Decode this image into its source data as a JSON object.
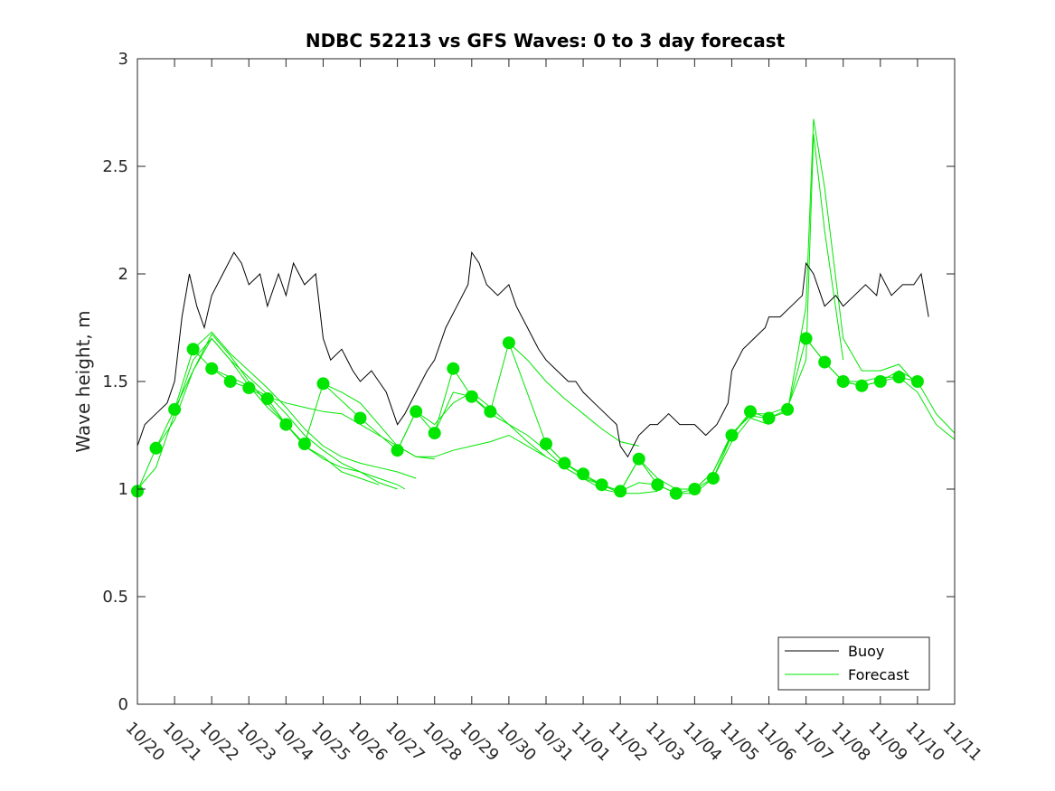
{
  "chart_data": {
    "type": "line",
    "title": "NDBC 52213 vs GFS Waves: 0 to 3 day forecast",
    "xlabel": "",
    "ylabel": "Wave height, m",
    "ylim": [
      0,
      3
    ],
    "xlim": [
      0,
      22
    ],
    "yticks": [
      0,
      0.5,
      1,
      1.5,
      2,
      2.5,
      3
    ],
    "ytick_labels": [
      "0",
      "0.5",
      "1",
      "1.5",
      "2",
      "2.5",
      "3"
    ],
    "xticks": [
      0,
      1,
      2,
      3,
      4,
      5,
      6,
      7,
      8,
      9,
      10,
      11,
      12,
      13,
      14,
      15,
      16,
      17,
      18,
      19,
      20,
      21,
      22
    ],
    "xtick_labels": [
      "10/20",
      "10/21",
      "10/22",
      "10/23",
      "10/24",
      "10/25",
      "10/26",
      "10/27",
      "10/28",
      "10/29",
      "10/30",
      "10/31",
      "11/01",
      "11/02",
      "11/03",
      "11/04",
      "11/05",
      "11/06",
      "11/07",
      "11/08",
      "11/09",
      "11/10",
      "11/11"
    ],
    "x_units": "days since 10/20",
    "grid": false,
    "legend": {
      "position": "bottom-right",
      "entries": [
        {
          "label": "Buoy",
          "color": "#000000"
        },
        {
          "label": "Forecast",
          "color": "#00e600"
        }
      ]
    },
    "series": [
      {
        "name": "Buoy",
        "color": "#000000",
        "points": [
          [
            0,
            1.2
          ],
          [
            0.2,
            1.3
          ],
          [
            0.5,
            1.35
          ],
          [
            0.8,
            1.4
          ],
          [
            1.0,
            1.5
          ],
          [
            1.2,
            1.8
          ],
          [
            1.4,
            2.0
          ],
          [
            1.6,
            1.85
          ],
          [
            1.8,
            1.75
          ],
          [
            2.0,
            1.9
          ],
          [
            2.3,
            2.0
          ],
          [
            2.6,
            2.1
          ],
          [
            2.8,
            2.05
          ],
          [
            3.0,
            1.95
          ],
          [
            3.3,
            2.0
          ],
          [
            3.5,
            1.85
          ],
          [
            3.8,
            2.0
          ],
          [
            4.0,
            1.9
          ],
          [
            4.2,
            2.05
          ],
          [
            4.5,
            1.95
          ],
          [
            4.8,
            2.0
          ],
          [
            5.0,
            1.7
          ],
          [
            5.2,
            1.6
          ],
          [
            5.5,
            1.65
          ],
          [
            5.8,
            1.55
          ],
          [
            6.0,
            1.5
          ],
          [
            6.3,
            1.55
          ],
          [
            6.5,
            1.5
          ],
          [
            6.7,
            1.45
          ],
          [
            6.9,
            1.35
          ],
          [
            7.0,
            1.3
          ],
          [
            7.2,
            1.35
          ],
          [
            7.5,
            1.45
          ],
          [
            7.8,
            1.55
          ],
          [
            8.0,
            1.6
          ],
          [
            8.3,
            1.75
          ],
          [
            8.6,
            1.85
          ],
          [
            8.9,
            1.95
          ],
          [
            9.0,
            2.1
          ],
          [
            9.2,
            2.05
          ],
          [
            9.4,
            1.95
          ],
          [
            9.7,
            1.9
          ],
          [
            10.0,
            1.95
          ],
          [
            10.2,
            1.85
          ],
          [
            10.5,
            1.75
          ],
          [
            10.8,
            1.65
          ],
          [
            11.0,
            1.6
          ],
          [
            11.3,
            1.55
          ],
          [
            11.6,
            1.5
          ],
          [
            11.8,
            1.5
          ],
          [
            12.0,
            1.45
          ],
          [
            12.3,
            1.4
          ],
          [
            12.6,
            1.35
          ],
          [
            12.9,
            1.3
          ],
          [
            13.0,
            1.2
          ],
          [
            13.2,
            1.15
          ],
          [
            13.5,
            1.25
          ],
          [
            13.8,
            1.3
          ],
          [
            14.0,
            1.3
          ],
          [
            14.3,
            1.35
          ],
          [
            14.6,
            1.3
          ],
          [
            14.9,
            1.3
          ],
          [
            15.0,
            1.3
          ],
          [
            15.3,
            1.25
          ],
          [
            15.6,
            1.3
          ],
          [
            15.9,
            1.4
          ],
          [
            16.0,
            1.55
          ],
          [
            16.3,
            1.65
          ],
          [
            16.6,
            1.7
          ],
          [
            16.9,
            1.75
          ],
          [
            17.0,
            1.8
          ],
          [
            17.3,
            1.8
          ],
          [
            17.6,
            1.85
          ],
          [
            17.9,
            1.9
          ],
          [
            18.0,
            2.05
          ],
          [
            18.2,
            2.0
          ],
          [
            18.5,
            1.85
          ],
          [
            18.8,
            1.9
          ],
          [
            19.0,
            1.85
          ],
          [
            19.3,
            1.9
          ],
          [
            19.6,
            1.95
          ],
          [
            19.9,
            1.9
          ],
          [
            20.0,
            2.0
          ],
          [
            20.3,
            1.9
          ],
          [
            20.6,
            1.95
          ],
          [
            20.9,
            1.95
          ],
          [
            21.1,
            2.0
          ],
          [
            21.3,
            1.8
          ]
        ]
      },
      {
        "name": "Forecast",
        "color": "#00e600",
        "points": [
          [
            0.0,
            0.99
          ],
          [
            0.5,
            1.19
          ],
          [
            1.0,
            1.37
          ],
          [
            1.5,
            1.65
          ],
          [
            2.0,
            1.56
          ],
          [
            2.5,
            1.5
          ],
          [
            3.0,
            1.47
          ],
          [
            3.5,
            1.42
          ],
          [
            4.0,
            1.3
          ],
          [
            4.5,
            1.21
          ],
          [
            5.0,
            1.49
          ],
          [
            6.0,
            1.33
          ],
          [
            7.0,
            1.18
          ],
          [
            7.5,
            1.36
          ],
          [
            8.0,
            1.26
          ],
          [
            8.5,
            1.56
          ],
          [
            9.0,
            1.43
          ],
          [
            9.5,
            1.36
          ],
          [
            10.0,
            1.68
          ],
          [
            11.0,
            1.21
          ],
          [
            11.5,
            1.12
          ],
          [
            12.0,
            1.07
          ],
          [
            12.5,
            1.02
          ],
          [
            13.0,
            0.99
          ],
          [
            13.5,
            1.14
          ],
          [
            14.0,
            1.02
          ],
          [
            14.5,
            0.98
          ],
          [
            15.0,
            1.0
          ],
          [
            15.5,
            1.05
          ],
          [
            16.0,
            1.25
          ],
          [
            16.5,
            1.36
          ],
          [
            17.0,
            1.33
          ],
          [
            17.5,
            1.37
          ],
          [
            18.0,
            1.7
          ],
          [
            18.5,
            1.59
          ],
          [
            19.0,
            1.5
          ],
          [
            19.5,
            1.48
          ],
          [
            20.0,
            1.5
          ],
          [
            20.5,
            1.52
          ],
          [
            21.0,
            1.5
          ]
        ]
      }
    ],
    "forecast_runs": [
      [
        [
          0.0,
          1.0
        ],
        [
          0.5,
          1.1
        ],
        [
          1.0,
          1.35
        ],
        [
          1.5,
          1.6
        ],
        [
          2.0,
          1.7
        ],
        [
          2.5,
          1.6
        ],
        [
          3.0,
          1.48
        ],
        [
          3.5,
          1.38
        ],
        [
          4.0,
          1.3
        ],
        [
          4.5,
          1.2
        ],
        [
          5.0,
          1.15
        ],
        [
          5.5,
          1.08
        ],
        [
          6.0,
          1.05
        ],
        [
          6.5,
          1.02
        ]
      ],
      [
        [
          0.5,
          1.19
        ],
        [
          1.0,
          1.32
        ],
        [
          1.5,
          1.55
        ],
        [
          2.0,
          1.72
        ],
        [
          2.5,
          1.62
        ],
        [
          3.0,
          1.5
        ],
        [
          3.5,
          1.4
        ],
        [
          4.0,
          1.3
        ],
        [
          4.5,
          1.2
        ],
        [
          5.0,
          1.14
        ],
        [
          5.5,
          1.1
        ],
        [
          6.0,
          1.08
        ],
        [
          6.5,
          1.03
        ],
        [
          7.0,
          1.0
        ]
      ],
      [
        [
          1.0,
          1.37
        ],
        [
          1.5,
          1.55
        ],
        [
          2.0,
          1.7
        ],
        [
          2.5,
          1.6
        ],
        [
          3.0,
          1.52
        ],
        [
          3.5,
          1.44
        ],
        [
          4.0,
          1.35
        ],
        [
          4.5,
          1.25
        ],
        [
          5.0,
          1.18
        ],
        [
          5.5,
          1.12
        ],
        [
          6.0,
          1.08
        ],
        [
          6.5,
          1.05
        ],
        [
          7.0,
          1.02
        ],
        [
          7.2,
          1.0
        ]
      ],
      [
        [
          1.5,
          1.65
        ],
        [
          2.0,
          1.73
        ],
        [
          2.5,
          1.63
        ],
        [
          3.0,
          1.55
        ],
        [
          3.5,
          1.47
        ],
        [
          4.0,
          1.38
        ],
        [
          4.5,
          1.28
        ],
        [
          5.0,
          1.2
        ],
        [
          5.5,
          1.15
        ],
        [
          6.0,
          1.12
        ],
        [
          6.5,
          1.1
        ],
        [
          7.0,
          1.08
        ],
        [
          7.5,
          1.05
        ]
      ],
      [
        [
          2.0,
          1.56
        ],
        [
          2.5,
          1.52
        ],
        [
          3.0,
          1.48
        ],
        [
          3.5,
          1.43
        ],
        [
          4.0,
          1.4
        ],
        [
          4.5,
          1.38
        ],
        [
          5.0,
          1.36
        ],
        [
          5.5,
          1.35
        ],
        [
          6.0,
          1.3
        ],
        [
          6.5,
          1.25
        ],
        [
          7.0,
          1.2
        ],
        [
          7.5,
          1.15
        ],
        [
          8.0,
          1.14
        ]
      ],
      [
        [
          5.0,
          1.49
        ],
        [
          5.5,
          1.45
        ],
        [
          6.0,
          1.4
        ],
        [
          6.5,
          1.3
        ],
        [
          7.0,
          1.2
        ],
        [
          7.5,
          1.15
        ],
        [
          8.0,
          1.15
        ],
        [
          8.5,
          1.18
        ],
        [
          9.0,
          1.2
        ],
        [
          9.5,
          1.22
        ],
        [
          10.0,
          1.25
        ],
        [
          10.5,
          1.2
        ],
        [
          11.0,
          1.15
        ]
      ],
      [
        [
          7.0,
          1.18
        ],
        [
          7.5,
          1.36
        ],
        [
          8.0,
          1.3
        ],
        [
          8.5,
          1.4
        ],
        [
          9.0,
          1.45
        ],
        [
          9.5,
          1.38
        ],
        [
          10.0,
          1.3
        ],
        [
          10.5,
          1.22
        ],
        [
          11.0,
          1.15
        ],
        [
          11.5,
          1.1
        ],
        [
          12.0,
          1.05
        ],
        [
          12.5,
          1.02
        ],
        [
          13.0,
          0.98
        ]
      ],
      [
        [
          8.0,
          1.26
        ],
        [
          8.5,
          1.45
        ],
        [
          9.0,
          1.43
        ],
        [
          9.5,
          1.35
        ],
        [
          10.0,
          1.3
        ],
        [
          10.5,
          1.25
        ],
        [
          11.0,
          1.18
        ],
        [
          11.5,
          1.1
        ],
        [
          12.0,
          1.05
        ],
        [
          12.5,
          1.0
        ],
        [
          13.0,
          0.98
        ],
        [
          13.5,
          0.98
        ],
        [
          14.0,
          0.99
        ]
      ],
      [
        [
          10.0,
          1.68
        ],
        [
          10.5,
          1.6
        ],
        [
          11.0,
          1.5
        ],
        [
          11.5,
          1.42
        ],
        [
          12.0,
          1.35
        ],
        [
          12.5,
          1.28
        ],
        [
          13.0,
          1.22
        ],
        [
          13.5,
          1.2
        ]
      ],
      [
        [
          11.0,
          1.21
        ],
        [
          11.5,
          1.12
        ],
        [
          12.0,
          1.06
        ],
        [
          12.5,
          1.02
        ],
        [
          13.0,
          0.99
        ],
        [
          13.5,
          1.03
        ],
        [
          14.0,
          1.02
        ],
        [
          14.5,
          0.98
        ],
        [
          15.0,
          0.98
        ],
        [
          15.5,
          1.05
        ],
        [
          16.0,
          1.22
        ],
        [
          16.5,
          1.33
        ],
        [
          17.0,
          1.3
        ]
      ],
      [
        [
          13.0,
          0.99
        ],
        [
          13.5,
          1.14
        ],
        [
          14.0,
          1.05
        ],
        [
          14.5,
          1.0
        ],
        [
          15.0,
          1.0
        ],
        [
          15.5,
          1.08
        ],
        [
          16.0,
          1.25
        ],
        [
          16.5,
          1.35
        ],
        [
          17.0,
          1.35
        ],
        [
          17.5,
          1.38
        ],
        [
          18.0,
          1.6
        ],
        [
          18.2,
          2.65
        ],
        [
          18.5,
          2.2
        ],
        [
          19.0,
          1.6
        ]
      ],
      [
        [
          15.0,
          1.0
        ],
        [
          15.5,
          1.08
        ],
        [
          16.0,
          1.26
        ],
        [
          16.5,
          1.34
        ],
        [
          17.0,
          1.33
        ],
        [
          17.5,
          1.36
        ],
        [
          18.0,
          1.85
        ],
        [
          18.2,
          2.72
        ],
        [
          18.5,
          2.4
        ],
        [
          19.0,
          1.7
        ],
        [
          19.5,
          1.55
        ],
        [
          20.0,
          1.55
        ],
        [
          20.5,
          1.58
        ],
        [
          21.0,
          1.48
        ]
      ],
      [
        [
          18.0,
          1.7
        ],
        [
          18.5,
          1.59
        ],
        [
          19.0,
          1.5
        ],
        [
          19.5,
          1.5
        ],
        [
          20.0,
          1.52
        ],
        [
          20.5,
          1.52
        ],
        [
          21.0,
          1.45
        ],
        [
          21.5,
          1.3
        ],
        [
          22.0,
          1.23
        ]
      ],
      [
        [
          19.0,
          1.5
        ],
        [
          19.5,
          1.48
        ],
        [
          20.0,
          1.5
        ],
        [
          20.5,
          1.55
        ],
        [
          21.0,
          1.5
        ],
        [
          21.5,
          1.35
        ],
        [
          22.0,
          1.26
        ]
      ]
    ]
  }
}
